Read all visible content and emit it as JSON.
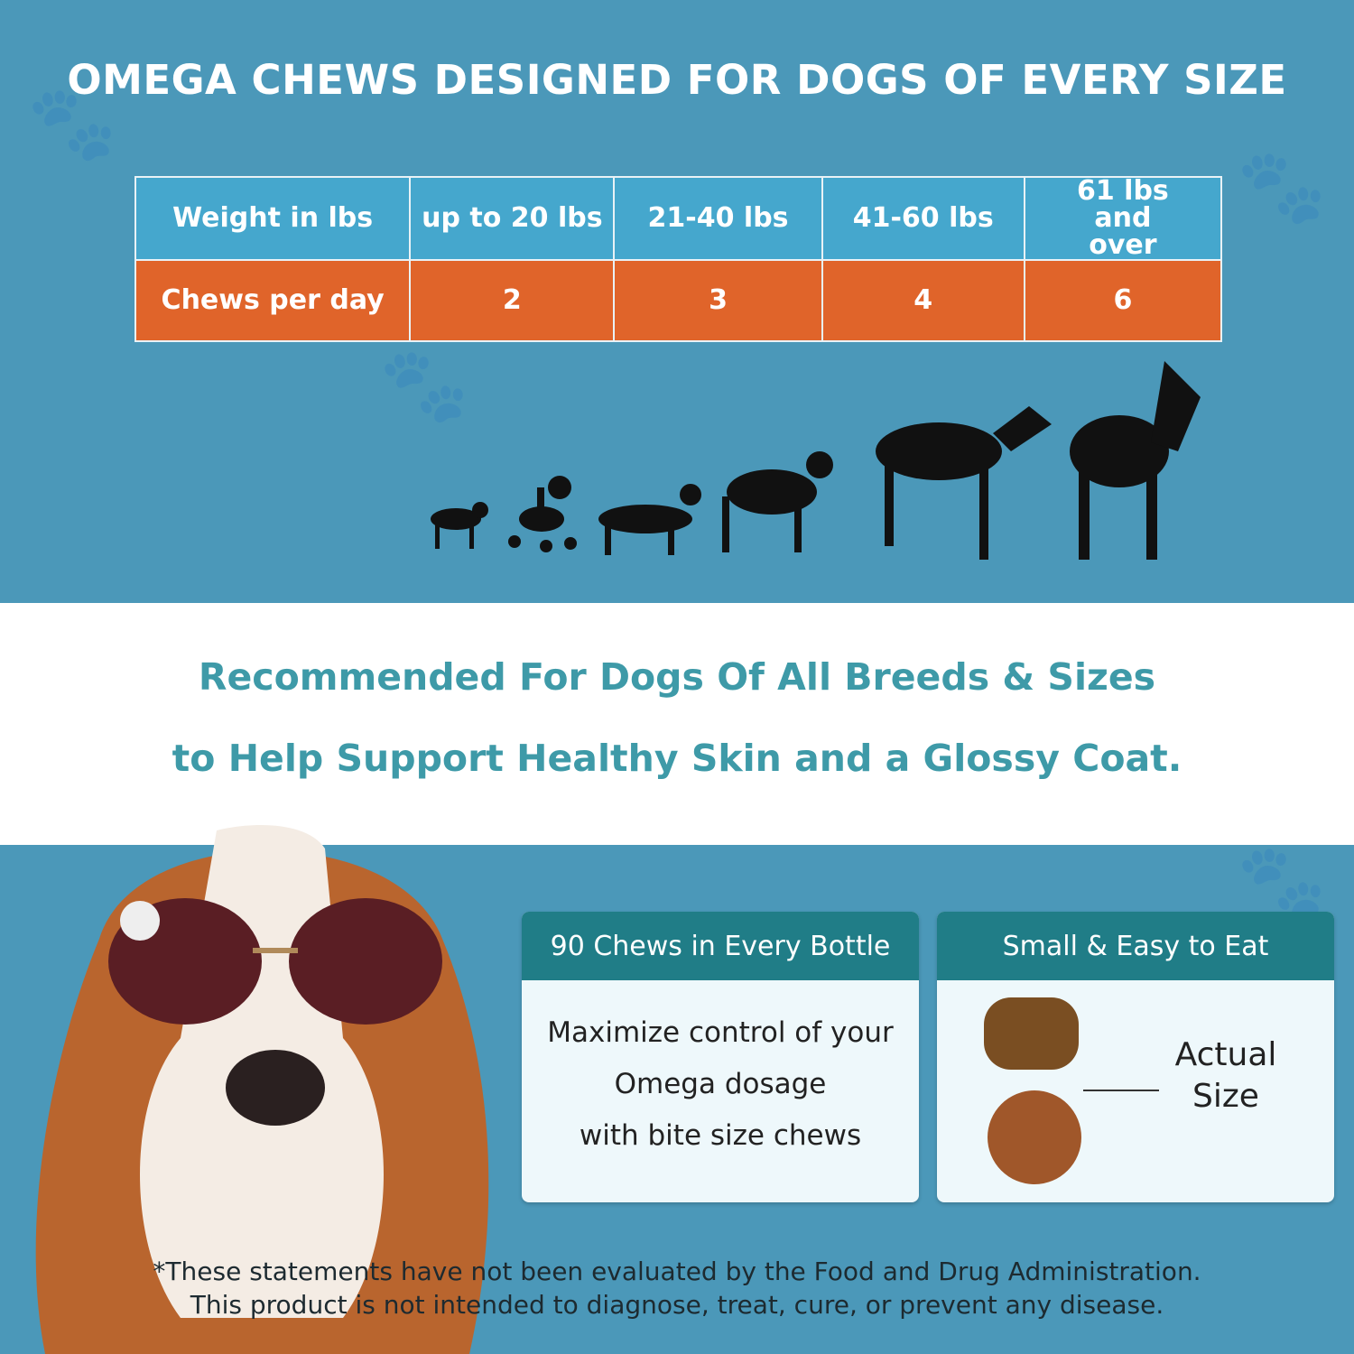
{
  "title": "OMEGA CHEWS DESIGNED FOR DOGS OF EVERY SIZE",
  "table": {
    "header": [
      "Weight in lbs",
      "up to 20 lbs",
      "21-40 lbs",
      "41-60 lbs",
      "61 lbs and over"
    ],
    "row": [
      "Chews per day",
      "2",
      "3",
      "4",
      "6"
    ]
  },
  "headline": {
    "line1": "Recommended For Dogs Of All Breeds & Sizes",
    "line2": "to Help Support Healthy Skin and a Glossy Coat."
  },
  "cards": [
    {
      "title": "90 Chews in Every Bottle",
      "lines": [
        "Maximize control of your",
        "Omega dosage",
        "with bite size chews"
      ]
    },
    {
      "title": "Small & Easy to Eat",
      "label_line1": "Actual",
      "label_line2": "Size"
    }
  ],
  "disclaimer": {
    "line1": "*These statements have not been evaluated by the Food and Drug Administration.",
    "line2": "This product is not intended to diagnose, treat, cure, or prevent any disease."
  },
  "colors": {
    "background": "#4b98b9",
    "header_cell": "#45a7cd",
    "orange": "#e0642a",
    "teal_text": "#3e9aa8",
    "card_header": "#207d87"
  }
}
